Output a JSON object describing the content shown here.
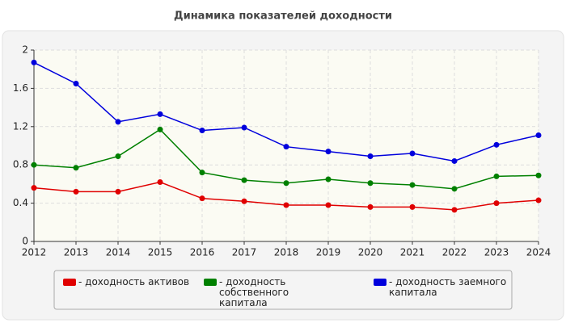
{
  "chart_data": {
    "type": "line",
    "title": "Динамика показателей доходности",
    "x": [
      2012,
      2013,
      2014,
      2015,
      2016,
      2017,
      2018,
      2019,
      2020,
      2021,
      2022,
      2023,
      2024
    ],
    "xlim": [
      2012,
      2024
    ],
    "xticks": [
      2012,
      2013,
      2014,
      2015,
      2016,
      2017,
      2018,
      2019,
      2020,
      2021,
      2022,
      2023,
      2024
    ],
    "ylim": [
      0,
      2
    ],
    "yticks": [
      0,
      0.4,
      0.8,
      1.2,
      1.6,
      2
    ],
    "grid": true,
    "series": [
      {
        "name": "- доходность активов",
        "color": "#e00000",
        "values": [
          0.56,
          0.52,
          0.52,
          0.62,
          0.45,
          0.42,
          0.38,
          0.38,
          0.36,
          0.36,
          0.33,
          0.4,
          0.43
        ]
      },
      {
        "name": "- доходность собственного капитала",
        "color": "#008000",
        "values": [
          0.8,
          0.77,
          0.89,
          1.17,
          0.72,
          0.64,
          0.61,
          0.65,
          0.61,
          0.59,
          0.55,
          0.68,
          0.69
        ]
      },
      {
        "name": "- доходность заемного капитала",
        "color": "#0000dd",
        "values": [
          1.87,
          1.65,
          1.25,
          1.33,
          1.16,
          1.19,
          0.99,
          0.94,
          0.89,
          0.92,
          0.84,
          1.01,
          1.11
        ]
      }
    ]
  }
}
